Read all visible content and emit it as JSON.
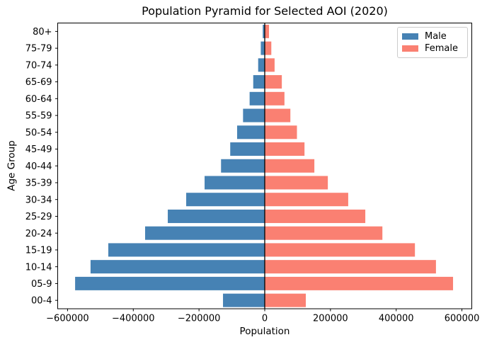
{
  "chart_data": {
    "type": "bar",
    "subtype": "population-pyramid",
    "orientation": "horizontal",
    "title": "Population Pyramid for Selected AOI (2020)",
    "xlabel": "Population",
    "ylabel": "Age Group",
    "grid": false,
    "categories_top_to_bottom": [
      "80+",
      "75-79",
      "70-74",
      "65-69",
      "60-64",
      "55-59",
      "50-54",
      "45-49",
      "40-44",
      "35-39",
      "30-34",
      "25-29",
      "20-24",
      "15-19",
      "10-14",
      "05-9",
      "00-4"
    ],
    "series": [
      {
        "name": "Male",
        "color": "#4682B4",
        "plotted_side": "left-negative",
        "values": [
          -6000,
          -12000,
          -20000,
          -35000,
          -46000,
          -66000,
          -84000,
          -105000,
          -133000,
          -183000,
          -239000,
          -295000,
          -364000,
          -476000,
          -530000,
          -577000,
          -127000
        ]
      },
      {
        "name": "Female",
        "color": "#FA8072",
        "plotted_side": "right-positive",
        "values": [
          13000,
          20000,
          30000,
          52000,
          60000,
          78000,
          98000,
          121000,
          151000,
          192000,
          254000,
          306000,
          358000,
          457000,
          521000,
          573000,
          125000
        ]
      }
    ],
    "xlim": [
      -630000,
      630000
    ],
    "xticks": {
      "values": [
        -600000,
        -400000,
        -200000,
        0,
        200000,
        400000,
        600000
      ],
      "labels": [
        "−600000",
        "−400000",
        "−200000",
        "0",
        "200000",
        "400000",
        "600000"
      ]
    },
    "zero_line_color": "#000000",
    "spine_color": "#000000",
    "legend": {
      "position": "upper-right",
      "entries": [
        "Male",
        "Female"
      ]
    }
  }
}
